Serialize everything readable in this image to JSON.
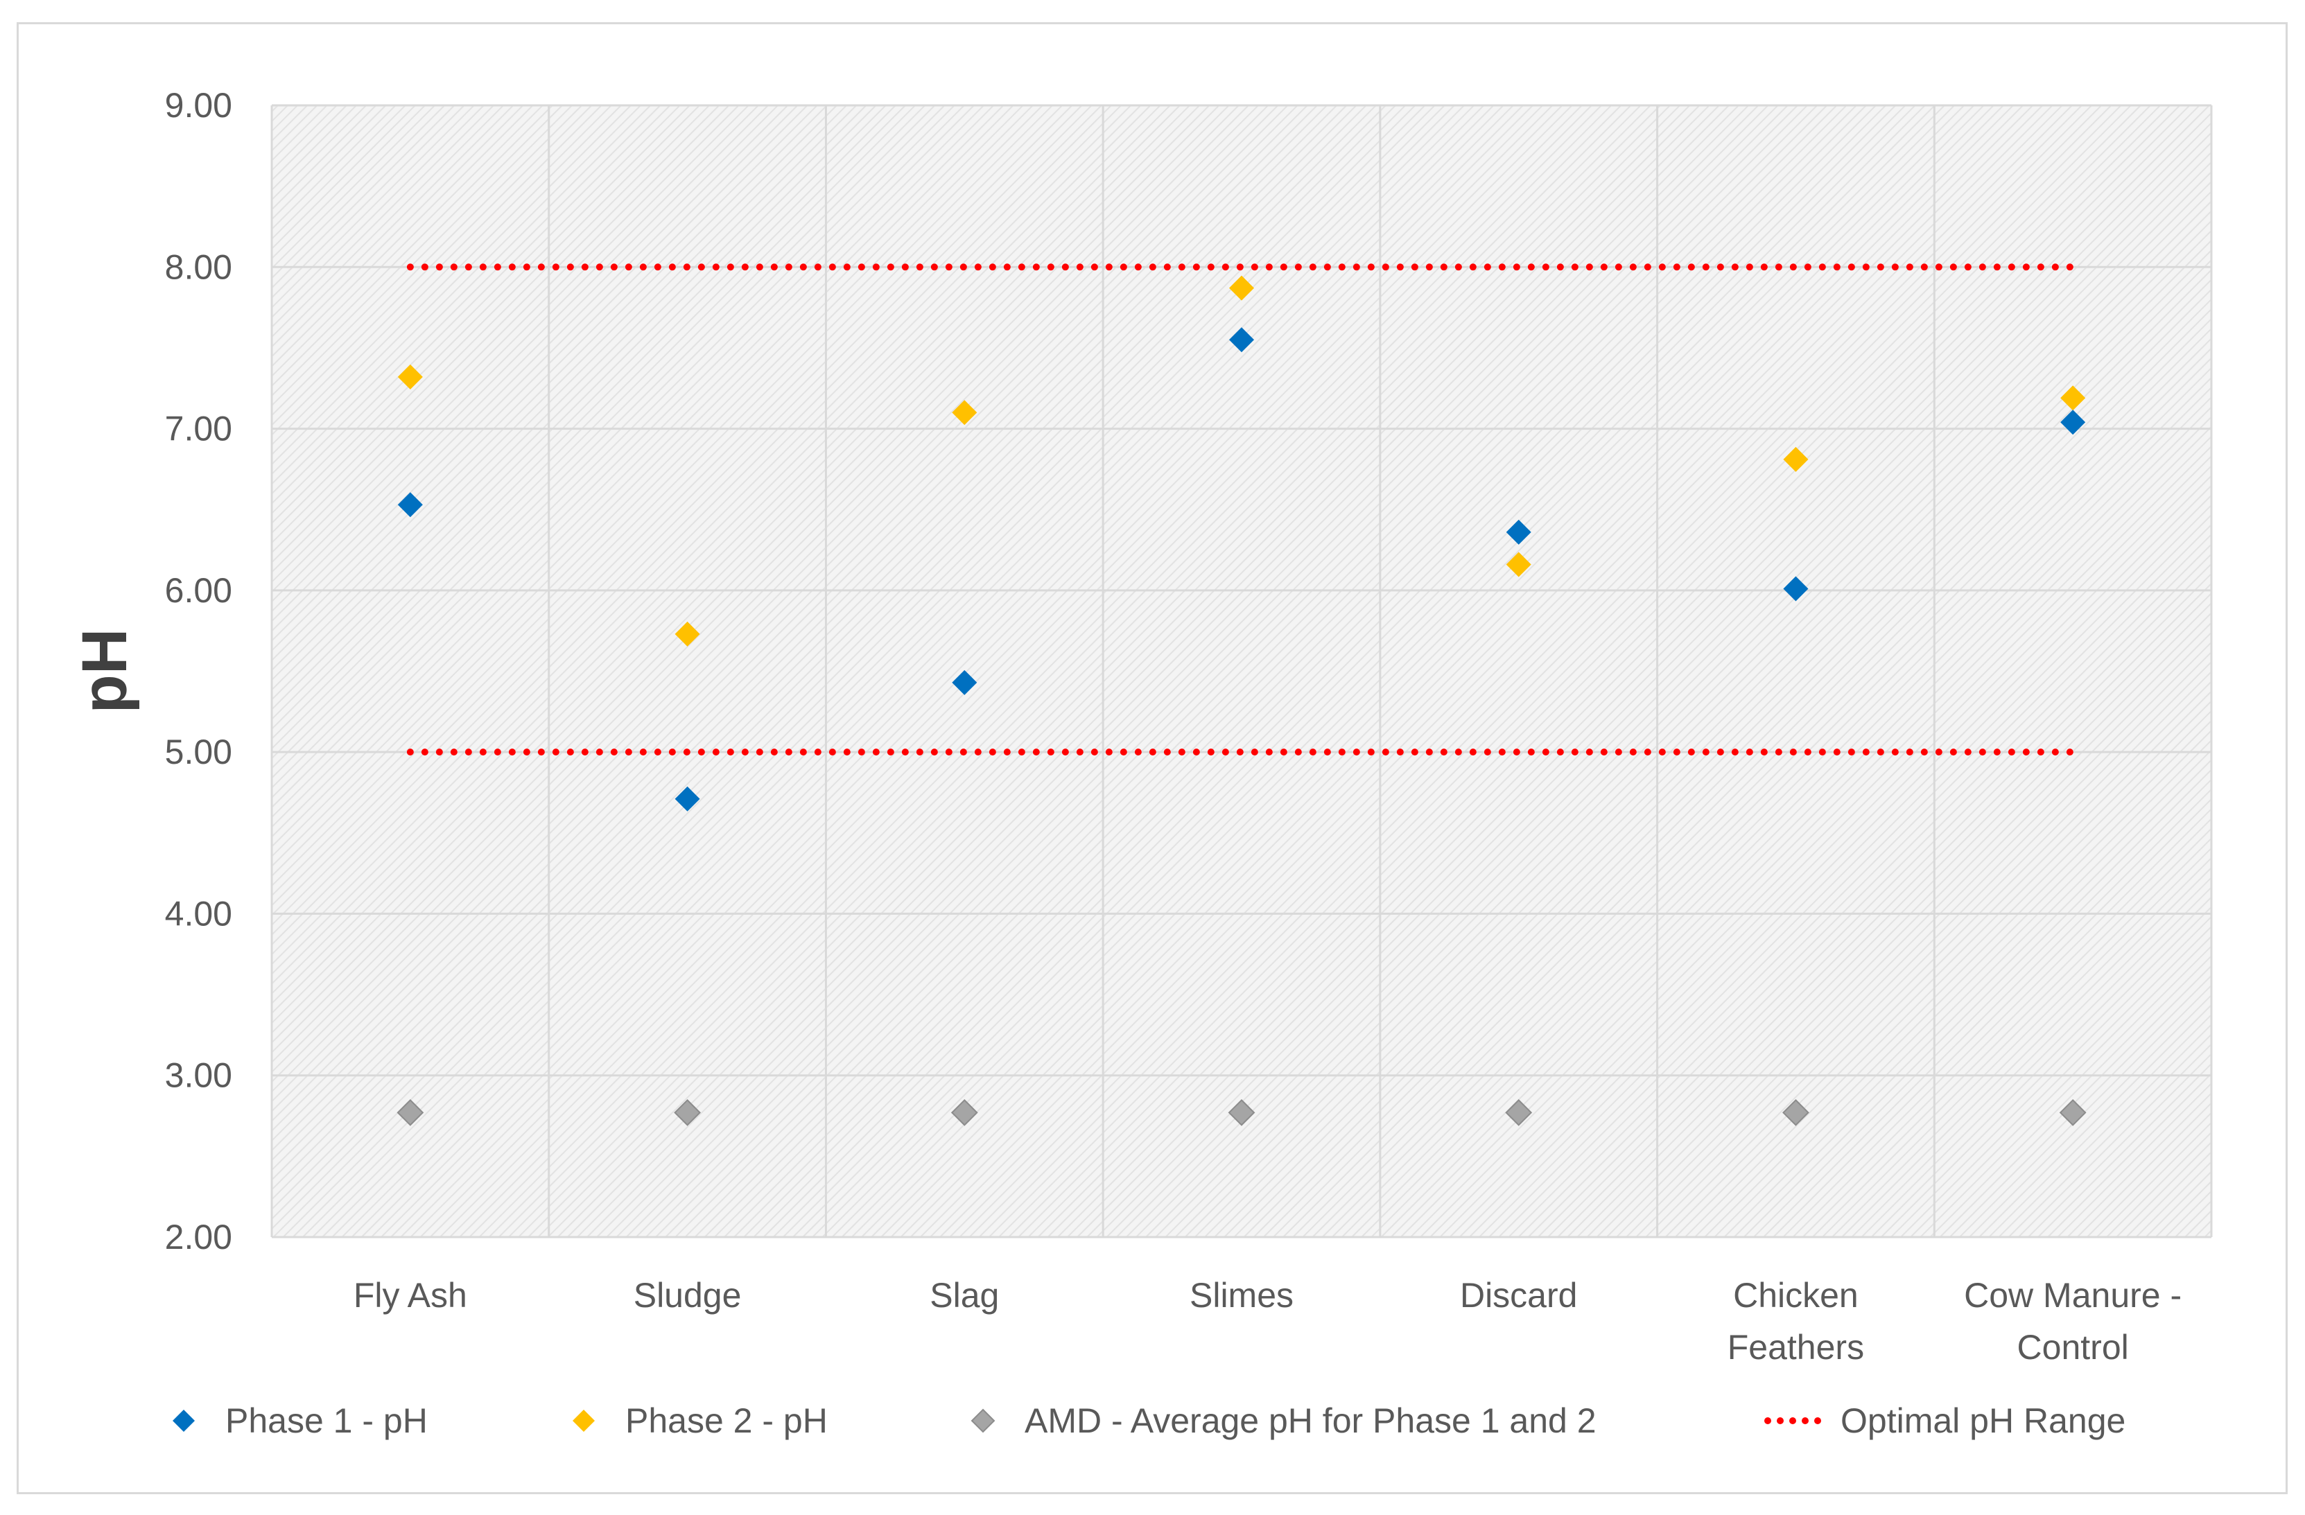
{
  "chart_data": {
    "type": "scatter",
    "ylabel": "pH",
    "xlabel": "",
    "title": "",
    "ylim": [
      2.0,
      9.0
    ],
    "yticks": [
      "2.00",
      "3.00",
      "4.00",
      "5.00",
      "6.00",
      "7.00",
      "8.00",
      "9.00"
    ],
    "categories": [
      [
        "Fly Ash"
      ],
      [
        "Sludge"
      ],
      [
        "Slag"
      ],
      [
        "Slimes"
      ],
      [
        "Discard"
      ],
      [
        "Chicken",
        "Feathers"
      ],
      [
        "Cow Manure -",
        "Control"
      ]
    ],
    "series": [
      {
        "name": "Phase 1 - pH",
        "color": "#0070c0",
        "marker": "diamond",
        "values": [
          6.53,
          4.71,
          5.43,
          7.55,
          6.36,
          6.01,
          7.04
        ]
      },
      {
        "name": "Phase 2 - pH",
        "color": "#ffc000",
        "marker": "diamond",
        "values": [
          7.32,
          5.73,
          7.1,
          7.87,
          6.16,
          6.81,
          7.19
        ]
      },
      {
        "name": "AMD - Average pH for Phase 1 and 2",
        "color": "#a5a5a5",
        "marker": "diamond",
        "values": [
          2.77,
          2.77,
          2.77,
          2.77,
          2.77,
          2.77,
          2.77
        ]
      }
    ],
    "reference_lines": [
      {
        "name": "Optimal pH Range",
        "color": "#ff0000",
        "style": "dotted",
        "values": [
          8.0,
          5.0
        ]
      }
    ],
    "grid": true,
    "legend_position": "bottom"
  }
}
